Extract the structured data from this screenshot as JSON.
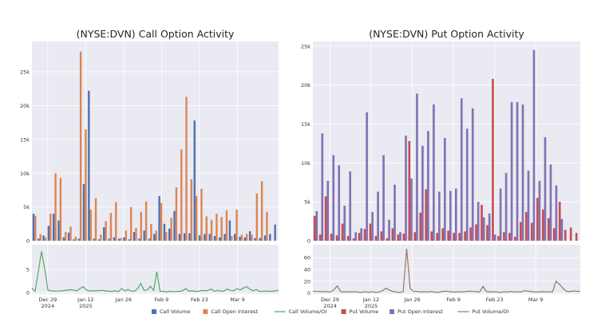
{
  "colors": {
    "call_volume": "#4c72b0",
    "call_oi": "#dd8452",
    "call_ratio": "#55a868",
    "put_volume": "#c44e52",
    "put_oi": "#8172b3",
    "put_ratio": "#937860",
    "plot_bg": "#eaeaf2",
    "grid": "#ffffff",
    "tick_text": "#333333"
  },
  "legend": [
    {
      "label": "Call Volume",
      "kind": "box",
      "color_key": "call_volume"
    },
    {
      "label": "Call Open Interest",
      "kind": "box",
      "color_key": "call_oi"
    },
    {
      "label": "Call Volume/OI",
      "kind": "line",
      "color_key": "call_ratio"
    },
    {
      "label": "Put Volume",
      "kind": "box",
      "color_key": "put_volume"
    },
    {
      "label": "Put Open Interest",
      "kind": "box",
      "color_key": "put_oi"
    },
    {
      "label": "Put Volume/OI",
      "kind": "line",
      "color_key": "put_ratio"
    }
  ],
  "chart_data": [
    {
      "type": "bar",
      "title": "(NYSE:DVN) Call Option Activity",
      "ylim": [
        0,
        29500
      ],
      "yticks": [
        0,
        5000,
        10000,
        15000,
        20000,
        25000
      ],
      "ytick_labels": [
        "0",
        "5k",
        "10k",
        "15k",
        "20k",
        "25k"
      ],
      "xlim": [
        -0.5,
        77.5
      ],
      "xticks": [
        4.5,
        16.5,
        28.5,
        40.5,
        52.5,
        64.5
      ],
      "xtick_labels": [
        [
          "Dec 29",
          "2024"
        ],
        [
          "Jan 12",
          "2025"
        ],
        [
          "Jan 26"
        ],
        [
          "Feb 9"
        ],
        [
          "Feb 23"
        ],
        [
          "Mar 9"
        ]
      ],
      "series": [
        {
          "name": "Call Volume",
          "color_key": "call_volume",
          "values": [
            4000,
            300,
            800,
            2200,
            4000,
            3000,
            500,
            1200,
            200,
            300,
            8400,
            22200,
            300,
            200,
            2000,
            300,
            500,
            300,
            500,
            200,
            1300,
            300,
            1500,
            300,
            1000,
            6600,
            2500,
            1800,
            4400,
            1000,
            1100,
            1100,
            17800,
            800,
            1000,
            1000,
            700,
            500,
            1000,
            3000,
            1000,
            600,
            500,
            1400,
            400,
            400,
            800,
            1000,
            2400
          ]
        },
        {
          "name": "Call Open Interest",
          "color_key": "call_oi",
          "values": [
            3700,
            1000,
            500,
            4000,
            10000,
            9300,
            1300,
            2100,
            600,
            28000,
            16500,
            4600,
            6300,
            900,
            2900,
            4100,
            5700,
            400,
            1500,
            5000,
            1900,
            4300,
            5800,
            2500,
            1500,
            5600,
            1300,
            3400,
            7900,
            13500,
            21300,
            9100,
            6600,
            7700,
            3600,
            3100,
            4000,
            3500,
            4500,
            700,
            4600,
            900,
            1000,
            900,
            7000,
            8800,
            4300
          ]
        },
        {
          "name": "Call Volume/OI",
          "color_key": "call_ratio",
          "values": [
            1.0,
            0.3,
            4.5,
            8.9,
            5.0,
            0.5,
            0.4,
            0.35,
            0.35,
            0.4,
            0.45,
            0.55,
            0.65,
            0.55,
            0.4,
            0.9,
            1.3,
            0.6,
            0.35,
            0.4,
            0.45,
            0.45,
            0.5,
            0.4,
            0.3,
            0.3,
            0.4,
            0.25,
            0.9,
            0.4,
            0.7,
            0.35,
            0.3,
            0.9,
            2.0,
            0.5,
            0.6,
            1.4,
            0.5,
            4.5,
            0.3,
            0.3,
            0.2,
            0.3,
            0.25,
            0.25,
            0.3,
            0.4,
            0.9,
            0.35,
            0.4,
            0.3,
            0.3,
            0.5,
            0.4,
            0.5,
            0.8,
            0.3,
            0.5,
            0.3,
            0.4,
            0.8,
            0.5,
            0.4,
            0.9,
            0.6,
            1.0,
            1.3,
            0.8,
            0.4,
            0.7,
            0.3,
            0.3,
            0.35,
            0.3,
            0.3,
            0.4,
            0.5
          ]
        },
        {
          "name": "",
          "color_key": "",
          "values": []
        }
      ],
      "ratio_ylim": [
        -0.3,
        10.3
      ],
      "ratio_yticks": [
        0,
        5
      ],
      "ratio_ytick_labels": [
        "0",
        "5"
      ]
    },
    {
      "type": "bar",
      "title": "(NYSE:DVN) Put Option Activity",
      "ylim": [
        0,
        25600
      ],
      "yticks": [
        0,
        5000,
        10000,
        15000,
        20000,
        25000
      ],
      "ytick_labels": [
        "0",
        "5k",
        "10k",
        "15k",
        "20k",
        "25k"
      ],
      "xlim": [
        -0.5,
        77.5
      ],
      "xticks": [
        4.5,
        16.5,
        28.5,
        40.5,
        52.5,
        64.5
      ],
      "xtick_labels": [
        [
          "Dec 29",
          "2024"
        ],
        [
          "Jan 12",
          "2025"
        ],
        [
          "Jan 26"
        ],
        [
          "Feb 9"
        ],
        [
          "Feb 23"
        ],
        [
          "Mar 9"
        ]
      ],
      "series": [
        {
          "name": "Put Volume",
          "color_key": "put_volume",
          "values": [
            3200,
            800,
            5700,
            900,
            700,
            2200,
            600,
            300,
            1000,
            1500,
            2200,
            600,
            1200,
            300,
            1600,
            800,
            900,
            12800,
            1100,
            3600,
            6600,
            1200,
            1000,
            1600,
            1300,
            1000,
            1000,
            1200,
            1700,
            2100,
            4600,
            2000,
            20800,
            600,
            1100,
            1000,
            500,
            2400,
            3700,
            2300,
            5500,
            4000,
            2900,
            1600,
            5000,
            1400,
            1700,
            1000
          ]
        },
        {
          "name": "Put Open Interest",
          "color_key": "put_oi",
          "values": [
            3800,
            13800,
            7700,
            11000,
            9700,
            4500,
            8900,
            1100,
            1600,
            16500,
            3700,
            6300,
            11000,
            2700,
            7200,
            1100,
            13500,
            8000,
            18900,
            12200,
            14100,
            17500,
            6300,
            13200,
            6400,
            6700,
            18300,
            14400,
            17000,
            5000,
            3000,
            3500,
            800,
            6700,
            8700,
            17800,
            17800,
            17500,
            9000,
            24500,
            7700,
            13300,
            9800,
            7100,
            2800
          ]
        },
        {
          "name": "Put Volume/OI",
          "color_key": "put_ratio",
          "values": [
            3,
            2.5,
            2.5,
            2,
            2,
            1.5,
            5,
            12,
            2,
            1.5,
            2,
            1.5,
            2,
            1.5,
            1,
            2,
            1,
            2,
            1,
            1.5,
            3.5,
            8,
            5,
            2.5,
            1.5,
            1,
            2,
            75,
            8,
            2.5,
            2.5,
            1.5,
            2,
            1.5,
            2.5,
            1.5,
            1,
            2,
            3,
            2.5,
            1.5,
            1.5,
            2,
            1.5,
            2.5,
            3,
            2.5,
            2,
            1.5,
            11,
            2,
            1.5,
            2,
            1.5,
            1,
            2,
            1.5,
            2.5,
            1.5,
            2,
            1.5,
            4,
            3,
            2,
            1.5,
            1.5,
            2,
            1.5,
            2,
            1.5,
            20,
            15,
            8,
            3,
            2,
            3.5,
            2.5,
            3
          ]
        }
      ],
      "ratio_ylim": [
        -2,
        82
      ],
      "ratio_yticks": [
        0,
        20,
        40,
        60
      ],
      "ratio_ytick_labels": [
        "0",
        "20",
        "40",
        "60"
      ]
    }
  ]
}
